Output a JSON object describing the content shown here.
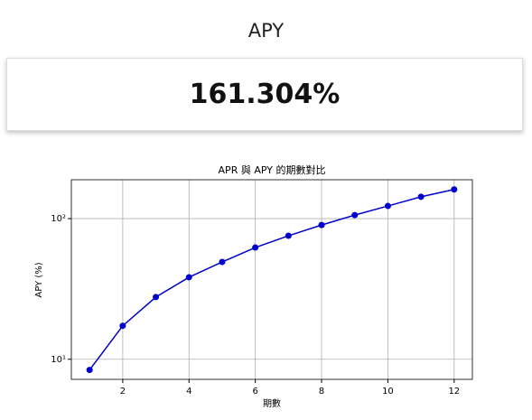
{
  "header": {
    "title": "APY"
  },
  "card": {
    "value": "161.304%"
  },
  "chart_data": {
    "type": "line",
    "title": "APR 與 APY 的期數對比",
    "x_label": "期數",
    "y_label": "APY (%)",
    "x": [
      1,
      2,
      3,
      4,
      5,
      6,
      7,
      8,
      9,
      10,
      11,
      12
    ],
    "series": [
      {
        "name": "APY",
        "color": "#0000cc",
        "values": [
          8.4,
          17.3,
          27.7,
          38.3,
          49.2,
          62.3,
          75.5,
          90.1,
          106,
          123,
          143,
          161.3
        ]
      }
    ],
    "xlim": [
      0.45,
      12.55
    ],
    "xticks": [
      2,
      4,
      6,
      8,
      10,
      12
    ],
    "ylim": [
      7.2,
      189
    ],
    "log_y": true,
    "yticks": [
      {
        "value": 10,
        "label": "10¹"
      },
      {
        "value": 100,
        "label": "10²"
      }
    ],
    "grid": true
  }
}
